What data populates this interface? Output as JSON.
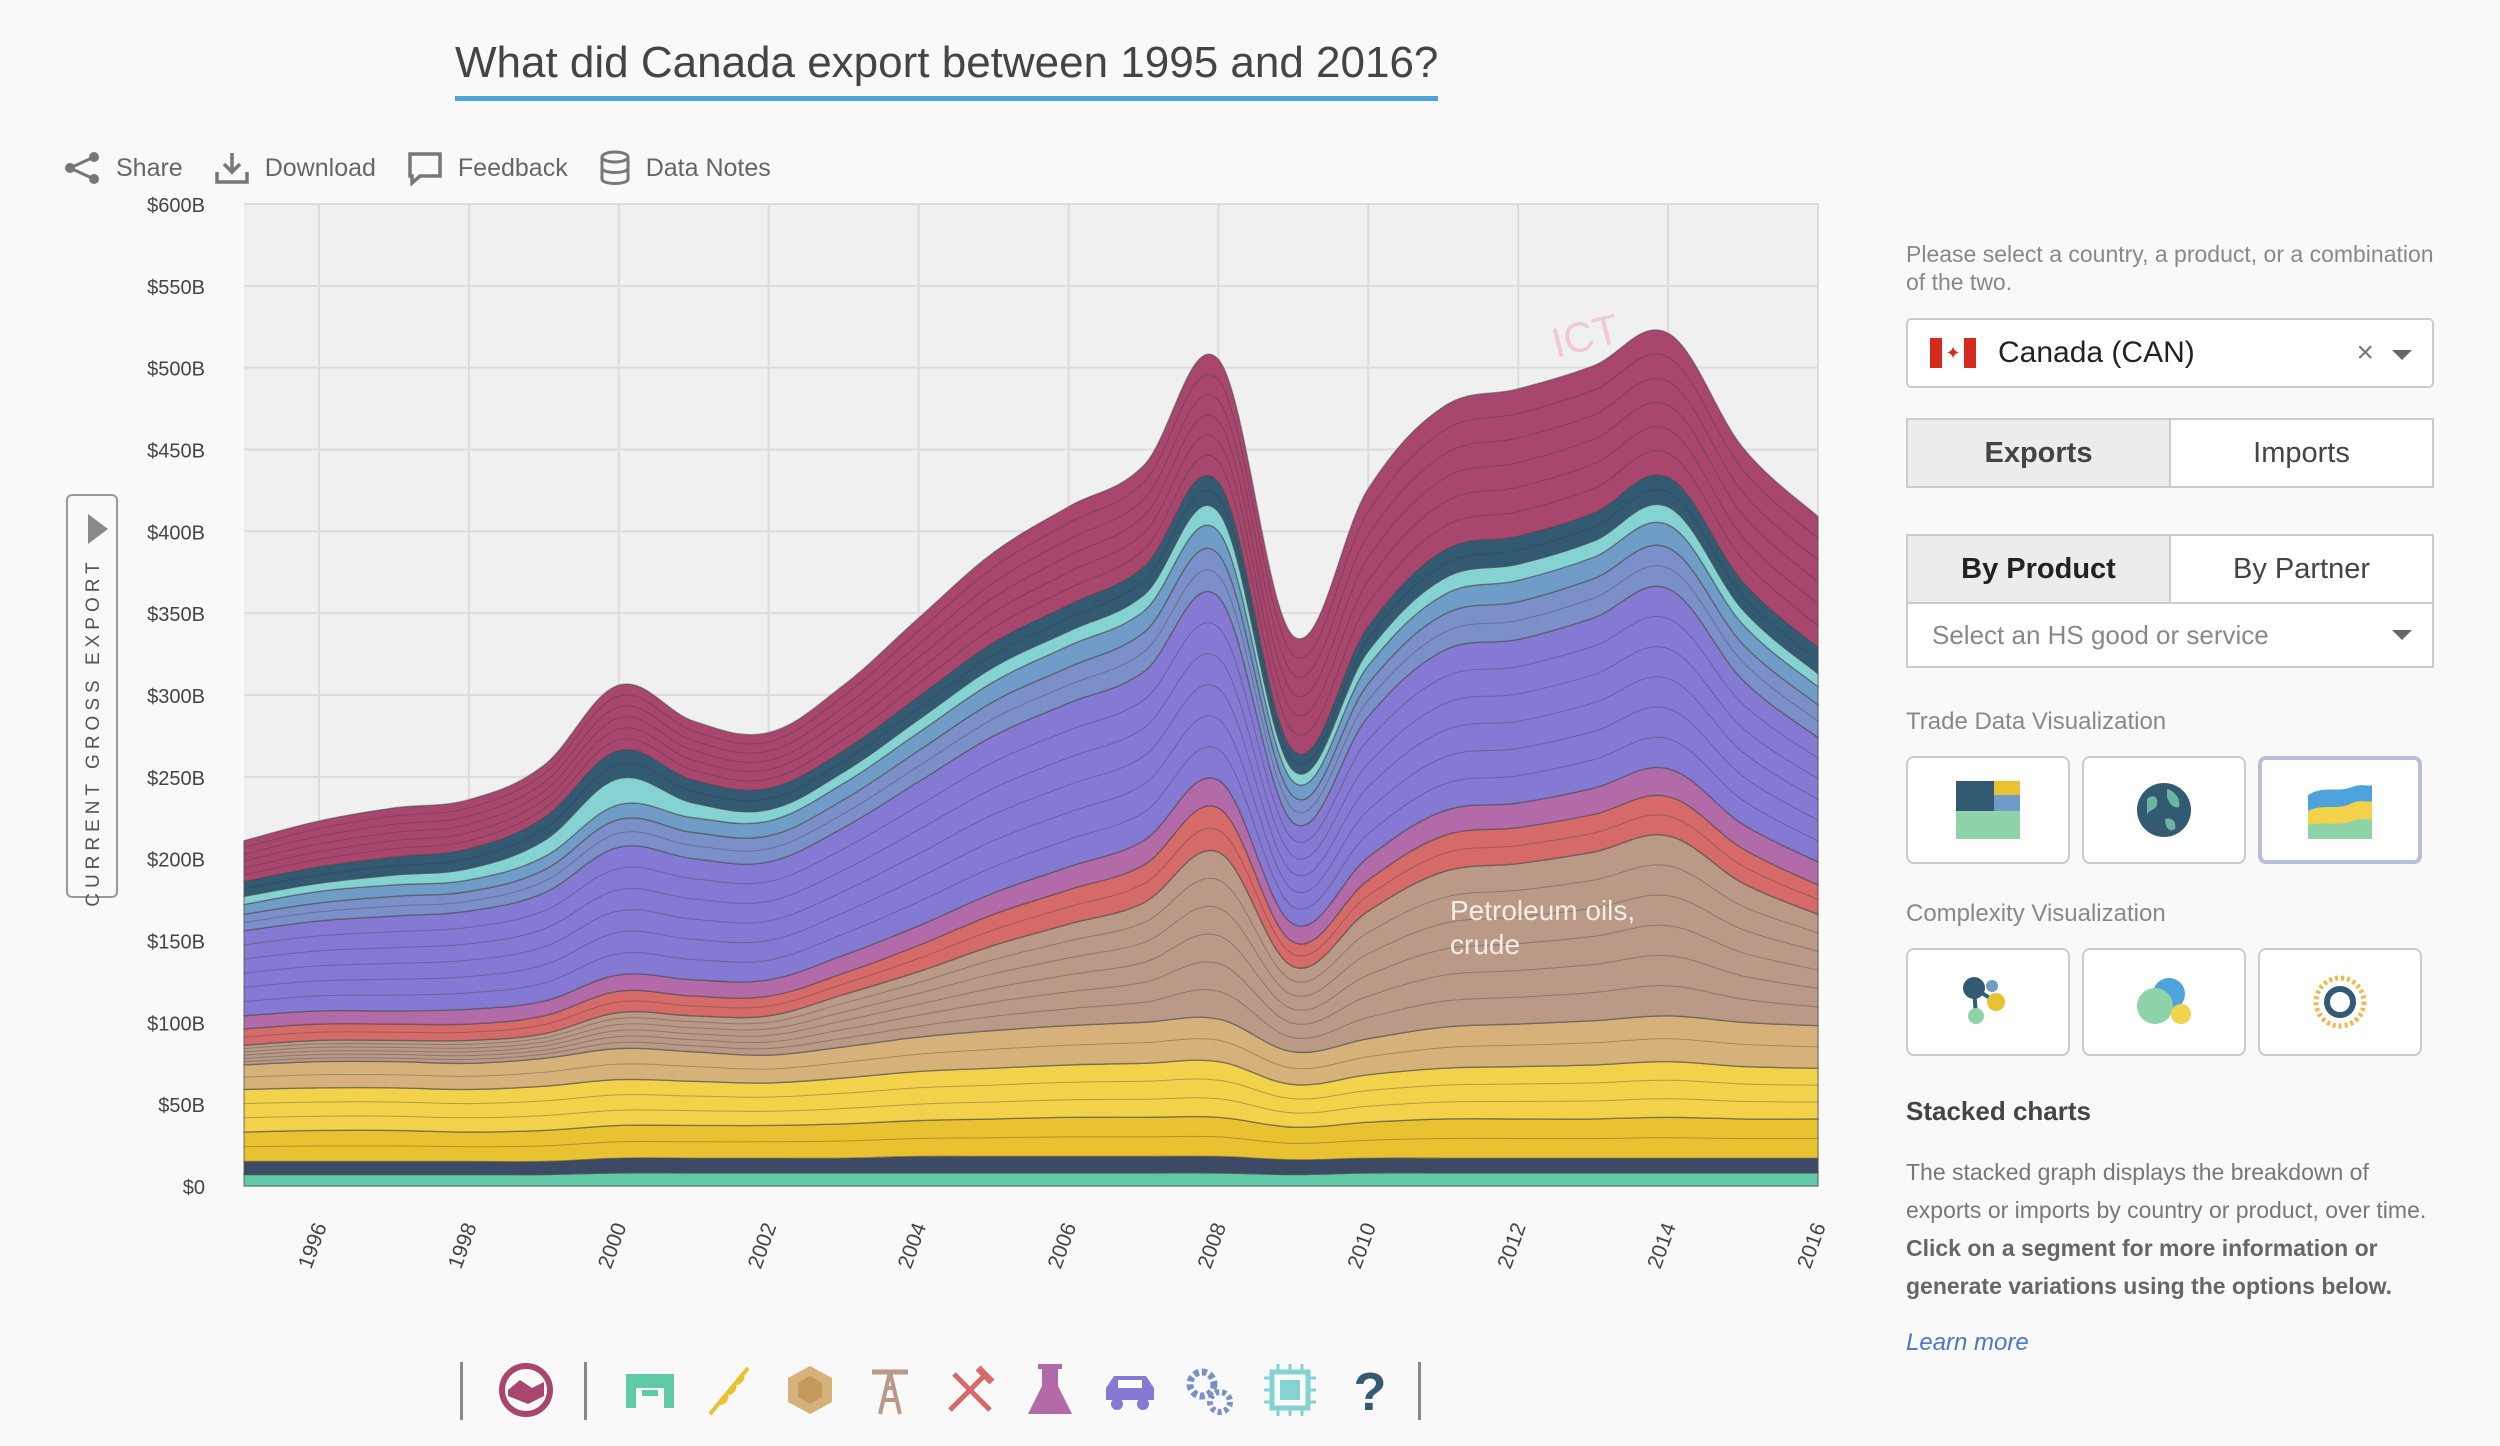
{
  "title": "What did Canada export between 1995 and 2016?",
  "toolbar": {
    "share": "Share",
    "download": "Download",
    "feedback": "Feedback",
    "data_notes": "Data Notes"
  },
  "side_tab_label": "CURRENT GROSS EXPORT",
  "chart_data": {
    "type": "area",
    "title": "What did Canada export between 1995 and 2016?",
    "ylabel": "CURRENT GROSS EXPORT",
    "xlabel": "",
    "x_range": [
      1995,
      2016
    ],
    "ylim": [
      0,
      600
    ],
    "x_ticks": [
      "1996",
      "1998",
      "2000",
      "2002",
      "2004",
      "2006",
      "2008",
      "2010",
      "2012",
      "2014",
      "2016"
    ],
    "y_ticks": [
      "$0",
      "$50B",
      "$100B",
      "$150B",
      "$200B",
      "$250B",
      "$300B",
      "$350B",
      "$400B",
      "$450B",
      "$500B",
      "$550B",
      "$600B"
    ],
    "grid": true,
    "stacked": true,
    "years": [
      1995,
      1996,
      1997,
      1998,
      1999,
      2000,
      2001,
      2002,
      2003,
      2004,
      2005,
      2006,
      2007,
      2008,
      2009,
      2010,
      2011,
      2012,
      2013,
      2014,
      2015,
      2016
    ],
    "series": [
      {
        "color": "#5fc9a8",
        "values": [
          7,
          7,
          7,
          7,
          7,
          8,
          8,
          8,
          8,
          8,
          8,
          8,
          8,
          8,
          7,
          8,
          8,
          8,
          8,
          8,
          8,
          8
        ]
      },
      {
        "color": "#3d4a66",
        "values": [
          8,
          8,
          8,
          8,
          8,
          9,
          9,
          9,
          9,
          10,
          10,
          10,
          10,
          10,
          9,
          9,
          9,
          9,
          9,
          9,
          9,
          9
        ]
      },
      {
        "color": "#e9c232",
        "values": [
          18,
          19,
          19,
          18,
          19,
          20,
          20,
          20,
          21,
          22,
          23,
          24,
          24,
          24,
          20,
          22,
          24,
          24,
          24,
          25,
          24,
          24
        ]
      },
      {
        "color": "#f2d24a",
        "values": [
          26,
          26,
          26,
          26,
          27,
          28,
          27,
          26,
          28,
          30,
          31,
          32,
          33,
          34,
          26,
          29,
          31,
          32,
          33,
          34,
          32,
          31
        ]
      },
      {
        "color": "#d6b27a",
        "values": [
          15,
          16,
          16,
          16,
          17,
          19,
          18,
          17,
          19,
          21,
          23,
          24,
          25,
          26,
          20,
          22,
          25,
          26,
          27,
          28,
          27,
          26
        ]
      },
      {
        "color": "#ba9987",
        "values": [
          12,
          13,
          13,
          14,
          15,
          22,
          22,
          24,
          32,
          40,
          52,
          62,
          73,
          102,
          52,
          78,
          95,
          98,
          103,
          110,
          85,
          68
        ]
      },
      {
        "color": "#d56a68",
        "values": [
          10,
          10,
          10,
          10,
          11,
          13,
          12,
          12,
          13,
          16,
          19,
          21,
          23,
          27,
          15,
          19,
          22,
          22,
          23,
          24,
          21,
          18
        ]
      },
      {
        "color": "#b26aa8",
        "values": [
          8,
          8,
          8,
          9,
          9,
          10,
          10,
          10,
          11,
          12,
          13,
          14,
          15,
          17,
          11,
          14,
          15,
          15,
          16,
          17,
          15,
          14
        ]
      },
      {
        "color": "#8479d3",
        "values": [
          52,
          55,
          58,
          60,
          66,
          78,
          74,
          72,
          78,
          88,
          96,
          100,
          103,
          112,
          62,
          86,
          98,
          100,
          104,
          110,
          88,
          76
        ]
      },
      {
        "color": "#7b8fc9",
        "values": [
          10,
          11,
          12,
          12,
          14,
          17,
          16,
          16,
          17,
          19,
          21,
          22,
          24,
          26,
          16,
          20,
          22,
          23,
          24,
          25,
          22,
          20
        ]
      },
      {
        "color": "#6f9dc8",
        "values": [
          6,
          7,
          7,
          7,
          8,
          9,
          9,
          9,
          10,
          11,
          12,
          13,
          13,
          14,
          9,
          11,
          12,
          13,
          13,
          14,
          12,
          11
        ]
      },
      {
        "color": "#84d2d2",
        "values": [
          5,
          5,
          6,
          7,
          10,
          16,
          9,
          7,
          7,
          8,
          9,
          9,
          10,
          12,
          7,
          9,
          10,
          10,
          10,
          11,
          9,
          8
        ]
      },
      {
        "color": "#335a73",
        "values": [
          9,
          10,
          11,
          12,
          14,
          17,
          14,
          13,
          13,
          14,
          15,
          16,
          17,
          18,
          12,
          15,
          17,
          17,
          17,
          18,
          17,
          16
        ]
      },
      {
        "color": "#a8466e",
        "values": [
          25,
          28,
          30,
          30,
          32,
          40,
          36,
          34,
          40,
          48,
          55,
          60,
          62,
          75,
          70,
          84,
          88,
          90,
          90,
          88,
          82,
          80
        ]
      }
    ],
    "annotations": [
      "ICT",
      "Petroleum oils, crude"
    ]
  },
  "category_icons": [
    "services-icon",
    "textiles-icon",
    "agriculture-icon",
    "stone-icon",
    "minerals-icon",
    "metals-icon",
    "chemicals-icon",
    "vehicles-icon",
    "machinery-icon",
    "electronics-icon",
    "other-icon"
  ],
  "panel": {
    "prompt": "Please select a country, a product, or a combination of the two.",
    "country": "Canada (CAN)",
    "clear_symbol": "×",
    "flow_tabs": [
      "Exports",
      "Imports"
    ],
    "mode_tabs": [
      "By Product",
      "By Partner"
    ],
    "hs_placeholder": "Select an HS good or service",
    "trade_viz_label": "Trade Data Visualization",
    "complexity_viz_label": "Complexity Visualization",
    "stacked_heading": "Stacked charts",
    "desc_plain": "The stacked graph displays the breakdown of exports or imports by country or product, over time. ",
    "desc_bold": "Click on a segment for more information or generate variations using the options below.",
    "learn_more": "Learn more"
  },
  "colors": {
    "title_underline": "#4ea3dd",
    "link": "#4a77c9"
  }
}
